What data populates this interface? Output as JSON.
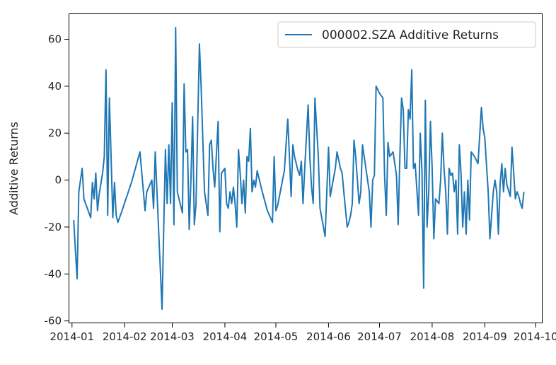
{
  "chart_data": {
    "type": "line",
    "title": "",
    "xlabel": "",
    "ylabel": "Additive Returns",
    "xlim": [
      "2013-12-30",
      "2014-10-05"
    ],
    "ylim": [
      -61,
      71
    ],
    "x_ticks": [
      "2014-01-01",
      "2014-02-01",
      "2014-03-01",
      "2014-04-01",
      "2014-05-01",
      "2014-06-01",
      "2014-07-01",
      "2014-08-01",
      "2014-09-01",
      "2014-10-01"
    ],
    "x_tick_labels": [
      "2014-01",
      "2014-02",
      "2014-03",
      "2014-04",
      "2014-05",
      "2014-06",
      "2014-07",
      "2014-08",
      "2014-09",
      "2014-10"
    ],
    "y_ticks": [
      -60,
      -40,
      -20,
      0,
      20,
      40,
      60
    ],
    "y_tick_labels": [
      "-60",
      "-40",
      "-20",
      "0",
      "20",
      "40",
      "60"
    ],
    "grid": false,
    "legend": {
      "position": "top-right"
    },
    "series": [
      {
        "name": "000002.SZA Additive Returns",
        "color": "#1f77b4",
        "points": [
          [
            "2014-01-02",
            -17
          ],
          [
            "2014-01-03",
            -30
          ],
          [
            "2014-01-04",
            -42
          ],
          [
            "2014-01-05",
            -5
          ],
          [
            "2014-01-07",
            5
          ],
          [
            "2014-01-08",
            -8
          ],
          [
            "2014-01-10",
            -12
          ],
          [
            "2014-01-12",
            -16
          ],
          [
            "2014-01-13",
            -1
          ],
          [
            "2014-01-14",
            -8
          ],
          [
            "2014-01-15",
            3
          ],
          [
            "2014-01-16",
            -13
          ],
          [
            "2014-01-17",
            -6
          ],
          [
            "2014-01-19",
            3
          ],
          [
            "2014-01-20",
            10
          ],
          [
            "2014-01-21",
            47
          ],
          [
            "2014-01-22",
            -15
          ],
          [
            "2014-01-23",
            35
          ],
          [
            "2014-01-24",
            10
          ],
          [
            "2014-01-25",
            -16
          ],
          [
            "2014-01-26",
            -1
          ],
          [
            "2014-01-27",
            -15
          ],
          [
            "2014-01-28",
            -18
          ],
          [
            "2014-01-30",
            -14
          ],
          [
            "2014-02-05",
            -1
          ],
          [
            "2014-02-10",
            12
          ],
          [
            "2014-02-13",
            -13
          ],
          [
            "2014-02-14",
            -5
          ],
          [
            "2014-02-17",
            0
          ],
          [
            "2014-02-18",
            -12
          ],
          [
            "2014-02-19",
            12
          ],
          [
            "2014-02-23",
            -55
          ],
          [
            "2014-02-24",
            -20
          ],
          [
            "2014-02-25",
            13
          ],
          [
            "2014-02-26",
            -10
          ],
          [
            "2014-02-27",
            15
          ],
          [
            "2014-02-28",
            -10
          ],
          [
            "2014-03-01",
            33
          ],
          [
            "2014-03-02",
            -19
          ],
          [
            "2014-03-03",
            65
          ],
          [
            "2014-03-04",
            -5
          ],
          [
            "2014-03-07",
            -14
          ],
          [
            "2014-03-08",
            41
          ],
          [
            "2014-03-09",
            12
          ],
          [
            "2014-03-10",
            13
          ],
          [
            "2014-03-11",
            -21
          ],
          [
            "2014-03-12",
            0
          ],
          [
            "2014-03-13",
            27
          ],
          [
            "2014-03-14",
            -19
          ],
          [
            "2014-03-15",
            -10
          ],
          [
            "2014-03-17",
            58
          ],
          [
            "2014-03-18",
            40
          ],
          [
            "2014-03-20",
            -5
          ],
          [
            "2014-03-22",
            -15
          ],
          [
            "2014-03-23",
            15
          ],
          [
            "2014-03-24",
            17
          ],
          [
            "2014-03-25",
            5
          ],
          [
            "2014-03-26",
            -3
          ],
          [
            "2014-03-28",
            25
          ],
          [
            "2014-03-29",
            -22
          ],
          [
            "2014-03-30",
            3
          ],
          [
            "2014-04-01",
            5
          ],
          [
            "2014-04-02",
            -10
          ],
          [
            "2014-04-03",
            -12
          ],
          [
            "2014-04-04",
            -5
          ],
          [
            "2014-04-05",
            -10
          ],
          [
            "2014-04-06",
            -3
          ],
          [
            "2014-04-07",
            -10
          ],
          [
            "2014-04-08",
            -20
          ],
          [
            "2014-04-09",
            13
          ],
          [
            "2014-04-10",
            3
          ],
          [
            "2014-04-11",
            -10
          ],
          [
            "2014-04-12",
            0
          ],
          [
            "2014-04-13",
            -14
          ],
          [
            "2014-04-14",
            10
          ],
          [
            "2014-04-15",
            8
          ],
          [
            "2014-04-16",
            22
          ],
          [
            "2014-04-17",
            -5
          ],
          [
            "2014-04-18",
            0
          ],
          [
            "2014-04-19",
            -3
          ],
          [
            "2014-04-20",
            4
          ],
          [
            "2014-04-23",
            -5
          ],
          [
            "2014-04-26",
            -13
          ],
          [
            "2014-04-29",
            -18
          ],
          [
            "2014-04-30",
            10
          ],
          [
            "2014-05-01",
            -13
          ],
          [
            "2014-05-02",
            -11
          ],
          [
            "2014-05-06",
            4
          ],
          [
            "2014-05-08",
            26
          ],
          [
            "2014-05-09",
            10
          ],
          [
            "2014-05-10",
            -7
          ],
          [
            "2014-05-11",
            15
          ],
          [
            "2014-05-12",
            10
          ],
          [
            "2014-05-14",
            4
          ],
          [
            "2014-05-15",
            2
          ],
          [
            "2014-05-16",
            8
          ],
          [
            "2014-05-17",
            -10
          ],
          [
            "2014-05-18",
            5
          ],
          [
            "2014-05-20",
            32
          ],
          [
            "2014-05-21",
            10
          ],
          [
            "2014-05-22",
            -3
          ],
          [
            "2014-05-23",
            -10
          ],
          [
            "2014-05-24",
            35
          ],
          [
            "2014-05-26",
            10
          ],
          [
            "2014-05-27",
            -12
          ],
          [
            "2014-05-29",
            -20
          ],
          [
            "2014-05-30",
            -24
          ],
          [
            "2014-06-01",
            14
          ],
          [
            "2014-06-02",
            -7
          ],
          [
            "2014-06-03",
            -3
          ],
          [
            "2014-06-05",
            5
          ],
          [
            "2014-06-06",
            12
          ],
          [
            "2014-06-08",
            5
          ],
          [
            "2014-06-09",
            3
          ],
          [
            "2014-06-10",
            -5
          ],
          [
            "2014-06-12",
            -20
          ],
          [
            "2014-06-13",
            -18
          ],
          [
            "2014-06-14",
            -15
          ],
          [
            "2014-06-15",
            -10
          ],
          [
            "2014-06-16",
            17
          ],
          [
            "2014-06-17",
            10
          ],
          [
            "2014-06-19",
            -10
          ],
          [
            "2014-06-20",
            -5
          ],
          [
            "2014-06-21",
            15
          ],
          [
            "2014-06-22",
            10
          ],
          [
            "2014-06-24",
            0
          ],
          [
            "2014-06-25",
            -5
          ],
          [
            "2014-06-26",
            -20
          ],
          [
            "2014-06-27",
            0
          ],
          [
            "2014-06-28",
            2
          ],
          [
            "2014-06-29",
            40
          ],
          [
            "2014-07-01",
            37
          ],
          [
            "2014-07-03",
            35
          ],
          [
            "2014-07-04",
            2
          ],
          [
            "2014-07-05",
            -15
          ],
          [
            "2014-07-06",
            16
          ],
          [
            "2014-07-07",
            10
          ],
          [
            "2014-07-09",
            12
          ],
          [
            "2014-07-10",
            7
          ],
          [
            "2014-07-11",
            2
          ],
          [
            "2014-07-12",
            -19
          ],
          [
            "2014-07-13",
            10
          ],
          [
            "2014-07-14",
            35
          ],
          [
            "2014-07-15",
            30
          ],
          [
            "2014-07-16",
            5
          ],
          [
            "2014-07-17",
            5
          ],
          [
            "2014-07-18",
            30
          ],
          [
            "2014-07-19",
            26
          ],
          [
            "2014-07-20",
            47
          ],
          [
            "2014-07-21",
            5
          ],
          [
            "2014-07-22",
            7
          ],
          [
            "2014-07-24",
            -15
          ],
          [
            "2014-07-25",
            20
          ],
          [
            "2014-07-26",
            4
          ],
          [
            "2014-07-27",
            -46
          ],
          [
            "2014-07-28",
            34
          ],
          [
            "2014-07-29",
            -20
          ],
          [
            "2014-07-30",
            -5
          ],
          [
            "2014-07-31",
            25
          ],
          [
            "2014-08-01",
            5
          ],
          [
            "2014-08-02",
            -25
          ],
          [
            "2014-08-03",
            -8
          ],
          [
            "2014-08-05",
            -10
          ],
          [
            "2014-08-06",
            0
          ],
          [
            "2014-08-07",
            20
          ],
          [
            "2014-08-08",
            5
          ],
          [
            "2014-08-09",
            -5
          ],
          [
            "2014-08-10",
            -23
          ],
          [
            "2014-08-11",
            5
          ],
          [
            "2014-08-12",
            2
          ],
          [
            "2014-08-13",
            3
          ],
          [
            "2014-08-14",
            -5
          ],
          [
            "2014-08-15",
            0
          ],
          [
            "2014-08-16",
            -23
          ],
          [
            "2014-08-17",
            15
          ],
          [
            "2014-08-18",
            3
          ],
          [
            "2014-08-19",
            -20
          ],
          [
            "2014-08-20",
            -5
          ],
          [
            "2014-08-21",
            -23
          ],
          [
            "2014-08-22",
            0
          ],
          [
            "2014-08-23",
            -17
          ],
          [
            "2014-08-24",
            12
          ],
          [
            "2014-08-26",
            10
          ],
          [
            "2014-08-28",
            7
          ],
          [
            "2014-08-30",
            31
          ],
          [
            "2014-08-31",
            22
          ],
          [
            "2014-09-01",
            18
          ],
          [
            "2014-09-03",
            -5
          ],
          [
            "2014-09-04",
            -25
          ],
          [
            "2014-09-05",
            -15
          ],
          [
            "2014-09-06",
            -5
          ],
          [
            "2014-09-07",
            0
          ],
          [
            "2014-09-08",
            -5
          ],
          [
            "2014-09-09",
            -23
          ],
          [
            "2014-09-10",
            -2
          ],
          [
            "2014-09-11",
            7
          ],
          [
            "2014-09-12",
            -5
          ],
          [
            "2014-09-13",
            5
          ],
          [
            "2014-09-14",
            -2
          ],
          [
            "2014-09-16",
            -7
          ],
          [
            "2014-09-17",
            14
          ],
          [
            "2014-09-18",
            3
          ],
          [
            "2014-09-19",
            -8
          ],
          [
            "2014-09-20",
            -5
          ],
          [
            "2014-09-21",
            -7
          ],
          [
            "2014-09-22",
            -10
          ],
          [
            "2014-09-23",
            -12
          ],
          [
            "2014-09-24",
            -5
          ]
        ]
      }
    ]
  }
}
